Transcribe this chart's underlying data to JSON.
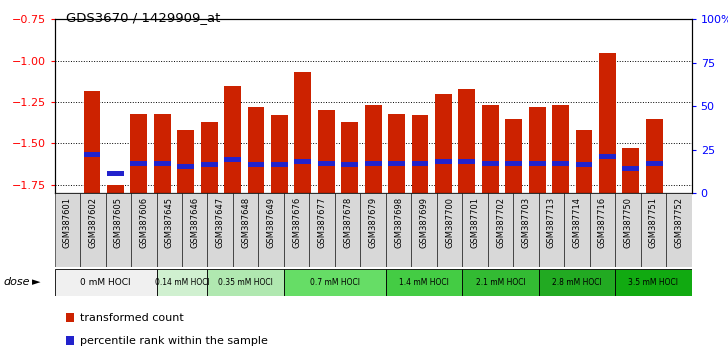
{
  "title": "GDS3670 / 1429909_at",
  "samples": [
    "GSM387601",
    "GSM387602",
    "GSM387605",
    "GSM387606",
    "GSM387645",
    "GSM387646",
    "GSM387647",
    "GSM387648",
    "GSM387649",
    "GSM387676",
    "GSM387677",
    "GSM387678",
    "GSM387679",
    "GSM387698",
    "GSM387699",
    "GSM387700",
    "GSM387701",
    "GSM387702",
    "GSM387703",
    "GSM387713",
    "GSM387714",
    "GSM387716",
    "GSM387750",
    "GSM387751",
    "GSM387752"
  ],
  "red_values": [
    -1.18,
    -1.75,
    -1.32,
    -1.32,
    -1.42,
    -1.37,
    -1.15,
    -1.28,
    -1.33,
    -1.07,
    -1.3,
    -1.37,
    -1.27,
    -1.32,
    -1.33,
    -1.2,
    -1.17,
    -1.27,
    -1.35,
    -1.28,
    -1.27,
    -1.42,
    -0.95,
    -1.53,
    -1.35
  ],
  "blue_positions": [
    -1.57,
    -1.68,
    -1.62,
    -1.62,
    -1.64,
    -1.63,
    -1.6,
    -1.63,
    -1.63,
    -1.61,
    -1.62,
    -1.63,
    -1.62,
    -1.62,
    -1.62,
    -1.61,
    -1.61,
    -1.62,
    -1.62,
    -1.62,
    -1.62,
    -1.63,
    -1.58,
    -1.65,
    -1.62
  ],
  "baseline": -1.8,
  "ylim_left": [
    -1.8,
    -0.75
  ],
  "ylim_right": [
    0,
    100
  ],
  "yticks_left": [
    -1.75,
    -1.5,
    -1.25,
    -1.0,
    -0.75
  ],
  "yticks_right": [
    0,
    25,
    50,
    75,
    100
  ],
  "bar_color": "#cc2200",
  "blue_color": "#2222cc",
  "dose_groups": [
    {
      "label": "0 mM HOCl",
      "start": 0,
      "end": 4,
      "color": "#f0f0f0"
    },
    {
      "label": "0.14 mM HOCl",
      "start": 4,
      "end": 6,
      "color": "#d0f0d0"
    },
    {
      "label": "0.35 mM HOCl",
      "start": 6,
      "end": 9,
      "color": "#b0e8b0"
    },
    {
      "label": "0.7 mM HOCl",
      "start": 9,
      "end": 13,
      "color": "#66dd66"
    },
    {
      "label": "1.4 mM HOCl",
      "start": 13,
      "end": 16,
      "color": "#44cc44"
    },
    {
      "label": "2.1 mM HOCl",
      "start": 16,
      "end": 19,
      "color": "#33bb33"
    },
    {
      "label": "2.8 mM HOCl",
      "start": 19,
      "end": 22,
      "color": "#22aa22"
    },
    {
      "label": "3.5 mM HOCl",
      "start": 22,
      "end": 25,
      "color": "#11aa11"
    }
  ],
  "legend_labels": [
    "transformed count",
    "percentile rank within the sample"
  ],
  "background_color": "#ffffff",
  "xtick_bg": "#d8d8d8"
}
